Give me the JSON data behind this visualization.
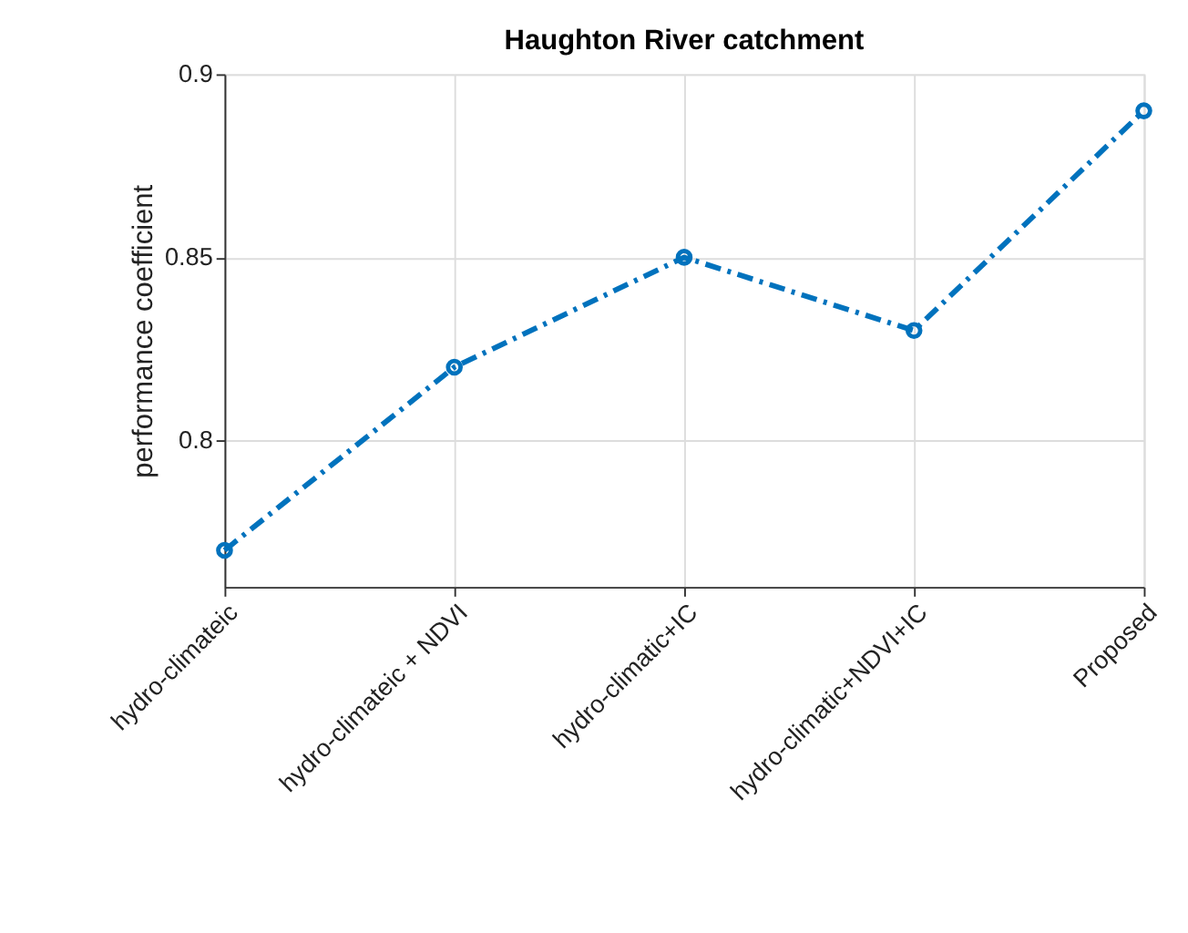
{
  "chart_data": {
    "type": "line",
    "title": "Haughton River catchment",
    "ylabel": "performance coefficient",
    "categories": [
      "hydro-climateic",
      "hydro-climateic + NDVI",
      "hydro-climatic+IC",
      "hydro-climatic+NDVI+IC",
      "Proposed"
    ],
    "series": [
      {
        "color": "#0072bd",
        "values": [
          0.77,
          0.82,
          0.85,
          0.83,
          0.89
        ]
      }
    ],
    "ylim": [
      0.76,
      0.9
    ],
    "yticks": [
      0.8,
      0.85,
      0.9
    ],
    "grid": true,
    "marker": "circle",
    "line_style": "dashed"
  }
}
